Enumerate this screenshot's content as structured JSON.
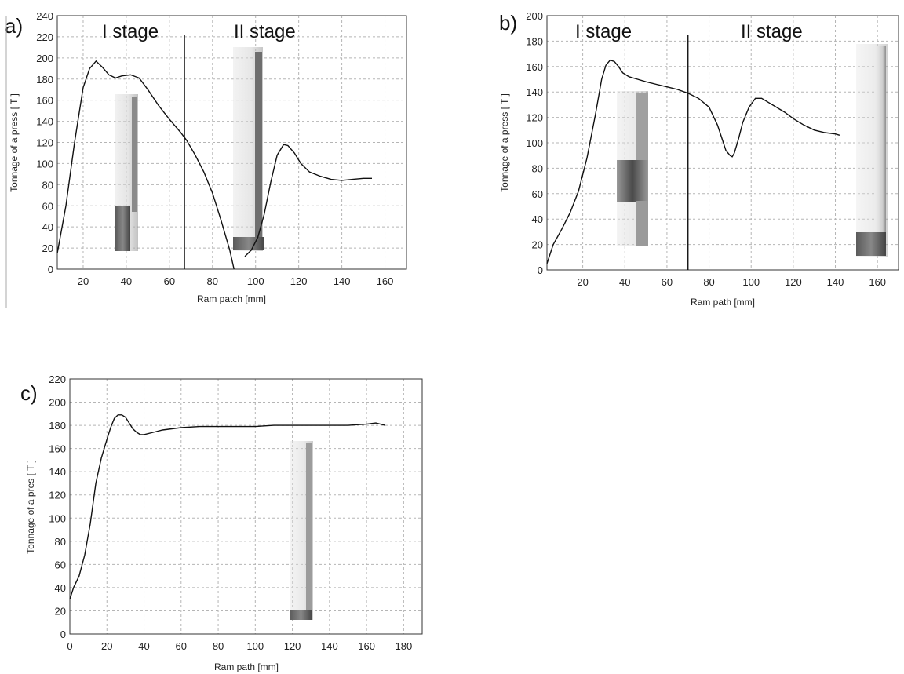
{
  "chart_data": [
    {
      "panel": "a)",
      "type": "line",
      "xlabel": "Ram patch [mm]",
      "ylabel": "Tonnage of a press [ T ]",
      "xticks": [
        20,
        40,
        60,
        80,
        100,
        120,
        140,
        160
      ],
      "yticks": [
        0,
        20,
        40,
        60,
        80,
        100,
        120,
        140,
        160,
        180,
        200,
        220,
        240
      ],
      "xlim": [
        8,
        170
      ],
      "ylim": [
        0,
        240
      ],
      "grid": true,
      "stage_divider_x": 67,
      "stage_labels": [
        "I stage",
        "II stage"
      ],
      "series": [
        {
          "x": [
            8,
            12,
            16,
            20,
            23,
            26,
            29,
            32,
            35,
            38,
            42,
            46,
            50,
            55,
            60,
            65,
            68,
            72,
            76,
            80,
            84,
            88,
            90
          ],
          "values": [
            15,
            60,
            120,
            172,
            190,
            197,
            191,
            184,
            181,
            183,
            184,
            181,
            170,
            155,
            142,
            130,
            122,
            108,
            92,
            72,
            46,
            18,
            0
          ]
        },
        {
          "x": [
            95,
            98,
            101,
            104,
            107,
            110,
            113,
            115,
            118,
            121,
            125,
            130,
            135,
            140,
            145,
            150,
            154
          ],
          "values": [
            12,
            18,
            30,
            52,
            82,
            108,
            118,
            117,
            110,
            100,
            92,
            88,
            85,
            84,
            85,
            86,
            86
          ]
        }
      ]
    },
    {
      "panel": "b)",
      "type": "line",
      "xlabel": "Ram path [mm]",
      "ylabel": "Tonnage of a press [ T ]",
      "xticks": [
        20,
        40,
        60,
        80,
        100,
        120,
        140,
        160
      ],
      "yticks": [
        0,
        20,
        40,
        60,
        80,
        100,
        120,
        140,
        160,
        180,
        200
      ],
      "xlim": [
        3,
        170
      ],
      "ylim": [
        0,
        200
      ],
      "grid": true,
      "stage_divider_x": 70,
      "stage_labels": [
        "I stage",
        "II stage"
      ],
      "series": [
        {
          "x": [
            3,
            6,
            10,
            14,
            18,
            22,
            26,
            29,
            31,
            33,
            35,
            37,
            39,
            42,
            46,
            50,
            55,
            60,
            65,
            70,
            75,
            80,
            84,
            86,
            88,
            90,
            91,
            92,
            94,
            96,
            99,
            102,
            105,
            108,
            112,
            116,
            120,
            125,
            130,
            135,
            140,
            142
          ],
          "values": [
            5,
            20,
            32,
            45,
            62,
            88,
            122,
            150,
            161,
            165,
            164,
            160,
            155,
            152,
            150,
            148,
            146,
            144,
            142,
            139,
            135,
            128,
            114,
            104,
            94,
            90,
            89,
            92,
            103,
            116,
            128,
            135,
            135,
            132,
            128,
            124,
            119,
            114,
            110,
            108,
            107,
            106
          ]
        }
      ]
    },
    {
      "panel": "c)",
      "type": "line",
      "xlabel": "Ram path [mm]",
      "ylabel": "Tonnage of a pres [ T ]",
      "xticks": [
        0,
        20,
        40,
        60,
        80,
        100,
        120,
        140,
        160,
        180
      ],
      "yticks": [
        0,
        20,
        40,
        60,
        80,
        100,
        120,
        140,
        160,
        180,
        200,
        220
      ],
      "xlim": [
        0,
        190
      ],
      "ylim": [
        0,
        220
      ],
      "grid": true,
      "series": [
        {
          "x": [
            0,
            2,
            5,
            8,
            11,
            14,
            17,
            20,
            22,
            24,
            26,
            28,
            30,
            32,
            34,
            36,
            38,
            40,
            45,
            50,
            60,
            70,
            80,
            90,
            100,
            110,
            120,
            130,
            140,
            150,
            160,
            165,
            170
          ],
          "values": [
            30,
            40,
            50,
            68,
            95,
            130,
            152,
            168,
            178,
            186,
            189,
            189,
            187,
            182,
            177,
            174,
            172,
            172,
            174,
            176,
            178,
            179,
            179,
            179,
            179,
            180,
            180,
            180,
            180,
            180,
            181,
            182,
            180
          ]
        }
      ]
    }
  ]
}
